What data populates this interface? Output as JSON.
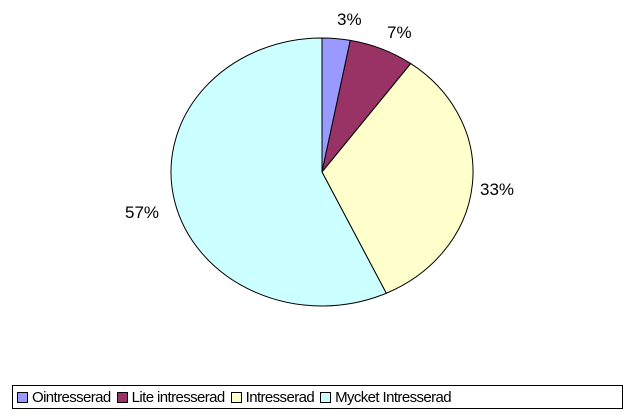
{
  "chart_data": {
    "type": "pie",
    "title": "",
    "categories": [
      "Ointresserad",
      "Lite intresserad",
      "Intresserad",
      "Mycket Intresserad"
    ],
    "values": [
      3,
      7,
      33,
      57
    ],
    "value_labels": [
      "3%",
      "7%",
      "33%",
      "57%"
    ],
    "colors": [
      "#9999FF",
      "#993366",
      "#FFFFCC",
      "#CCFFFF"
    ],
    "legend_placement": "bottom"
  }
}
